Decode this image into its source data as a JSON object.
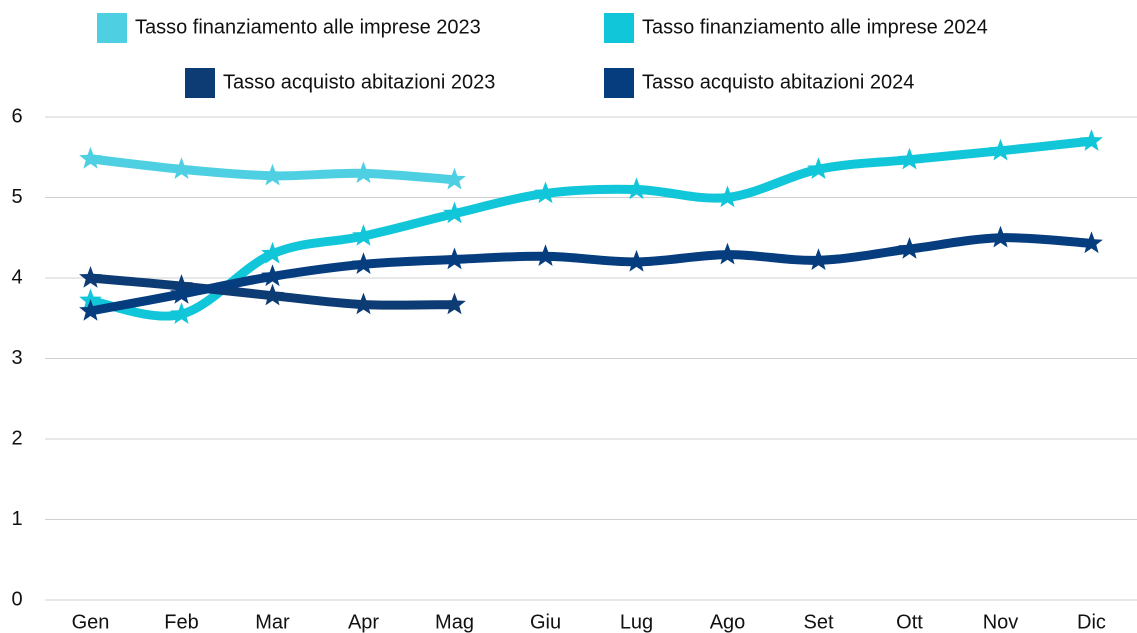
{
  "chart_data": {
    "type": "line",
    "categories": [
      "Gen",
      "Feb",
      "Mar",
      "Apr",
      "Mag",
      "Giu",
      "Lug",
      "Ago",
      "Set",
      "Ott",
      "Nov",
      "Dic"
    ],
    "series": [
      {
        "name": "Tasso finanziamento alle imprese 2023",
        "color": "#4fd0e2",
        "values": [
          5.48,
          5.35,
          5.27,
          5.3,
          5.22,
          null,
          null,
          null,
          null,
          null,
          null,
          null
        ]
      },
      {
        "name": "Tasso finanziamento alle imprese 2024",
        "color": "#12c6d9",
        "values": [
          3.72,
          3.55,
          4.3,
          4.52,
          4.8,
          5.05,
          5.1,
          5.0,
          5.35,
          5.47,
          5.58,
          5.7
        ]
      },
      {
        "name": "Tasso acquisto abitazioni 2023",
        "color": "#0d3b73",
        "values": [
          4.0,
          3.9,
          3.78,
          3.67,
          3.67,
          null,
          null,
          null,
          null,
          null,
          null,
          null
        ]
      },
      {
        "name": "Tasso acquisto abitazioni 2024",
        "color": "#053d7e",
        "values": [
          3.59,
          3.8,
          4.02,
          4.17,
          4.23,
          4.27,
          4.2,
          4.29,
          4.22,
          4.36,
          4.5,
          4.43
        ]
      }
    ],
    "ylim": [
      0,
      6
    ],
    "yticks": [
      0,
      1,
      2,
      3,
      4,
      5,
      6
    ],
    "grid": true,
    "legend": "top",
    "smooth": true,
    "marker": "star"
  }
}
